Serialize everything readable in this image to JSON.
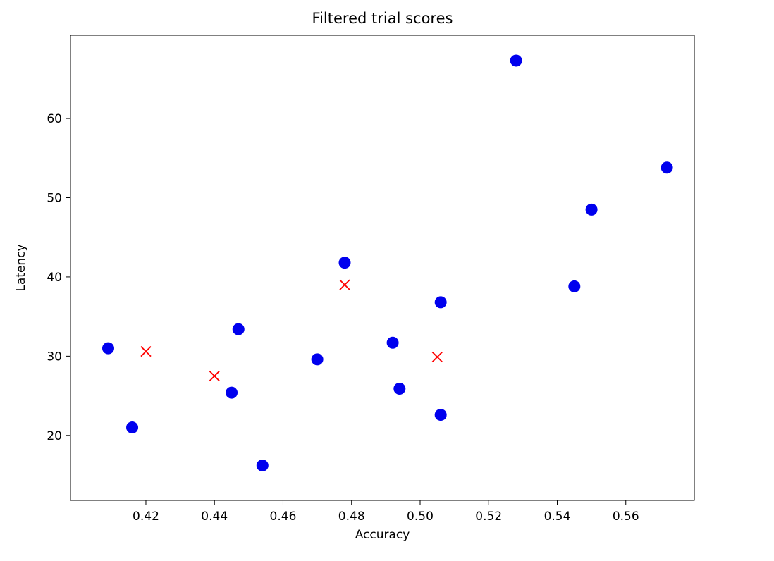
{
  "chart_data": {
    "type": "scatter",
    "title": "Filtered trial scores",
    "xlabel": "Accuracy",
    "ylabel": "Latency",
    "xlim": [
      0.398,
      0.58
    ],
    "ylim": [
      11.8,
      70.5
    ],
    "xticks": [
      "0.42",
      "0.44",
      "0.46",
      "0.48",
      "0.50",
      "0.52",
      "0.54",
      "0.56"
    ],
    "yticks": [
      "20",
      "30",
      "40",
      "50",
      "60"
    ],
    "grid": false,
    "legend": false,
    "axis_color": "#000000",
    "text_color": "#000000",
    "series": [
      {
        "name": "blue-circles",
        "marker": "circle",
        "color": "#0000ee",
        "size": 8.5,
        "points": [
          [
            0.409,
            31.0
          ],
          [
            0.416,
            21.0
          ],
          [
            0.445,
            25.4
          ],
          [
            0.447,
            33.4
          ],
          [
            0.454,
            16.2
          ],
          [
            0.47,
            29.6
          ],
          [
            0.478,
            41.8
          ],
          [
            0.492,
            31.7
          ],
          [
            0.494,
            25.9
          ],
          [
            0.506,
            36.8
          ],
          [
            0.506,
            22.6
          ],
          [
            0.528,
            67.3
          ],
          [
            0.545,
            38.8
          ],
          [
            0.55,
            48.5
          ],
          [
            0.572,
            53.8
          ]
        ]
      },
      {
        "name": "red-crosses",
        "marker": "x",
        "color": "#ff0000",
        "size": 7,
        "points": [
          [
            0.42,
            30.6
          ],
          [
            0.44,
            27.5
          ],
          [
            0.478,
            39.0
          ],
          [
            0.505,
            29.9
          ]
        ]
      }
    ]
  }
}
